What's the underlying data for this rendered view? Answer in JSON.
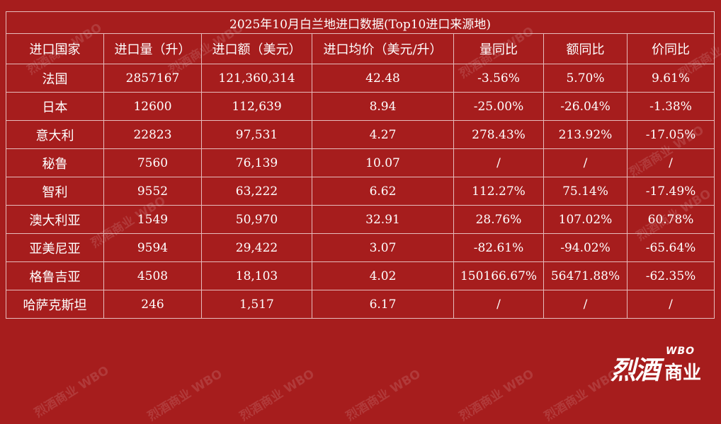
{
  "title": "2025年10月白兰地进口数据(Top10进口来源地)",
  "headers": [
    "进口国家",
    "进口量（升）",
    "进口额（美元）",
    "进口均价（美元/升）",
    "量同比",
    "额同比",
    "价同比"
  ],
  "rows": [
    {
      "country": "法国",
      "volume": "2857167",
      "amount": "121,360,314",
      "avg_price": "42.48",
      "vol_yoy": "-3.56%",
      "amt_yoy": "5.70%",
      "price_yoy": "9.61%"
    },
    {
      "country": "日本",
      "volume": "12600",
      "amount": "112,639",
      "avg_price": "8.94",
      "vol_yoy": "-25.00%",
      "amt_yoy": "-26.04%",
      "price_yoy": "-1.38%"
    },
    {
      "country": "意大利",
      "volume": "22823",
      "amount": "97,531",
      "avg_price": "4.27",
      "vol_yoy": "278.43%",
      "amt_yoy": "213.92%",
      "price_yoy": "-17.05%"
    },
    {
      "country": "秘鲁",
      "volume": "7560",
      "amount": "76,139",
      "avg_price": "10.07",
      "vol_yoy": "/",
      "amt_yoy": "/",
      "price_yoy": "/"
    },
    {
      "country": "智利",
      "volume": "9552",
      "amount": "63,222",
      "avg_price": "6.62",
      "vol_yoy": "112.27%",
      "amt_yoy": "75.14%",
      "price_yoy": "-17.49%"
    },
    {
      "country": "澳大利亚",
      "volume": "1549",
      "amount": "50,970",
      "avg_price": "32.91",
      "vol_yoy": "28.76%",
      "amt_yoy": "107.02%",
      "price_yoy": "60.78%"
    },
    {
      "country": "亚美尼亚",
      "volume": "9594",
      "amount": "29,422",
      "avg_price": "3.07",
      "vol_yoy": "-82.61%",
      "amt_yoy": "-94.02%",
      "price_yoy": "-65.64%"
    },
    {
      "country": "格鲁吉亚",
      "volume": "4508",
      "amount": "18,103",
      "avg_price": "4.02",
      "vol_yoy": "150166.67%",
      "amt_yoy": "56471.88%",
      "price_yoy": "-62.35%"
    },
    {
      "country": "哈萨克斯坦",
      "volume": "246",
      "amount": "1,517",
      "avg_price": "6.17",
      "vol_yoy": "/",
      "amt_yoy": "/",
      "price_yoy": "/"
    }
  ],
  "logo": {
    "main": "烈酒",
    "sub": "商业",
    "latin": "WBO"
  },
  "watermark_text": "烈酒商业 WBO",
  "colors": {
    "background": "#a61d1d",
    "grid": "#e6bcbc",
    "text": "#ffffff"
  }
}
